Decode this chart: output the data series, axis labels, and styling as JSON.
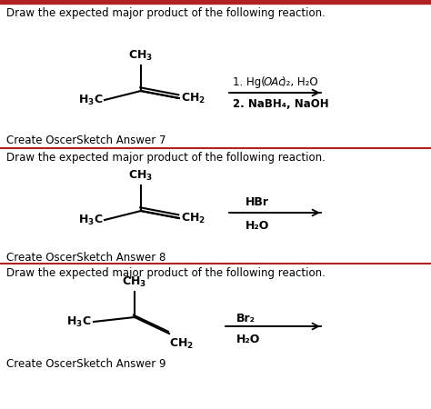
{
  "background_color": "#ffffff",
  "top_bar_color": "#b22222",
  "divider_color": "#b22222",
  "text_color": "#000000",
  "title_text": "Draw the expected major product of the following reaction.",
  "section1": {
    "reagent1_pre": "1. Hg(",
    "reagent1_italic": "OAc",
    "reagent1_post": ")₂, H₂O",
    "reagent2": "2. NaBH₄, NaOH",
    "answer_label": "Create OscerSketch Answer 7"
  },
  "section2": {
    "reagent1": "HBr",
    "reagent2": "H₂O",
    "answer_label": "Create OscerSketch Answer 8"
  },
  "section3": {
    "reagent1": "Br₂",
    "reagent2": "H₂O",
    "answer_label": "Create OscerSketch Answer 9"
  }
}
